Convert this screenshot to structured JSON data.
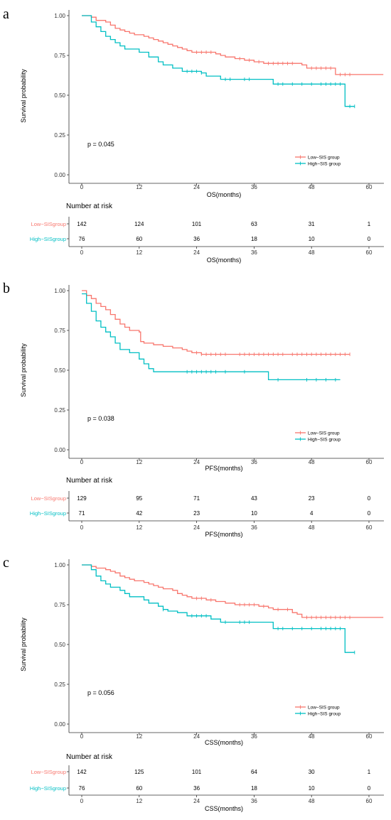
{
  "colors": {
    "low": "#F8766D",
    "high": "#00BFC4",
    "axis": "#333333"
  },
  "chart_data": [
    {
      "panel": "a",
      "type": "line",
      "ylabel": "Survival probability",
      "xlabel": "OS(months)",
      "p_value": "p = 0.045",
      "xlim": [
        0,
        60
      ],
      "ylim": [
        0,
        1
      ],
      "x_ticks": [
        "0",
        "12",
        "24",
        "36",
        "48",
        "60"
      ],
      "y_ticks": [
        "0.00",
        "0.25",
        "0.50",
        "0.75",
        "1.00"
      ],
      "series": [
        {
          "name": "Low−SIS group",
          "steps": [
            [
              0,
              1.0
            ],
            [
              2,
              0.99
            ],
            [
              3,
              0.97
            ],
            [
              5,
              0.96
            ],
            [
              6,
              0.94
            ],
            [
              7,
              0.92
            ],
            [
              8,
              0.91
            ],
            [
              9,
              0.9
            ],
            [
              10,
              0.89
            ],
            [
              11,
              0.88
            ],
            [
              13,
              0.87
            ],
            [
              14,
              0.86
            ],
            [
              15,
              0.85
            ],
            [
              16,
              0.84
            ],
            [
              17,
              0.83
            ],
            [
              18,
              0.82
            ],
            [
              19,
              0.81
            ],
            [
              20,
              0.8
            ],
            [
              21,
              0.79
            ],
            [
              22,
              0.78
            ],
            [
              23,
              0.77
            ],
            [
              28,
              0.76
            ],
            [
              29,
              0.75
            ],
            [
              30,
              0.74
            ],
            [
              32,
              0.73
            ],
            [
              34,
              0.72
            ],
            [
              36,
              0.71
            ],
            [
              38,
              0.7
            ],
            [
              46,
              0.69
            ],
            [
              47,
              0.67
            ],
            [
              53,
              0.63
            ],
            [
              63,
              0.63
            ]
          ],
          "censors": [
            24,
            25,
            26,
            27,
            33,
            35,
            37,
            39,
            40,
            41,
            42,
            43,
            44,
            48,
            49,
            50,
            51,
            52,
            54,
            55,
            56
          ]
        },
        {
          "name": "High−SIS group",
          "steps": [
            [
              0,
              1.0
            ],
            [
              2,
              0.96
            ],
            [
              3,
              0.93
            ],
            [
              4,
              0.9
            ],
            [
              5,
              0.87
            ],
            [
              6,
              0.85
            ],
            [
              7,
              0.83
            ],
            [
              8,
              0.81
            ],
            [
              9,
              0.79
            ],
            [
              12,
              0.77
            ],
            [
              14,
              0.74
            ],
            [
              16,
              0.71
            ],
            [
              17,
              0.69
            ],
            [
              19,
              0.67
            ],
            [
              21,
              0.65
            ],
            [
              25,
              0.64
            ],
            [
              26,
              0.62
            ],
            [
              29,
              0.6
            ],
            [
              40,
              0.57
            ],
            [
              55,
              0.57
            ],
            [
              55,
              0.43
            ],
            [
              57,
              0.43
            ]
          ],
          "censors": [
            22,
            23,
            24,
            25,
            30,
            31,
            34,
            35,
            41,
            42,
            44,
            46,
            48,
            50,
            51,
            52,
            53,
            54,
            56,
            57
          ]
        }
      ],
      "risk_table": {
        "title": "Number at risk",
        "times": [
          0,
          12,
          24,
          36,
          48,
          60
        ],
        "rows": [
          {
            "label": "Low−SISgroup",
            "values": [
              "142",
              "124",
              "101",
              "63",
              "31",
              "1"
            ]
          },
          {
            "label": "High−SISgroup",
            "values": [
              "76",
              "60",
              "36",
              "18",
              "10",
              "0"
            ]
          }
        ],
        "xlabel": "OS(months)"
      }
    },
    {
      "panel": "b",
      "type": "line",
      "ylabel": "Survival probability",
      "xlabel": "PFS(months)",
      "p_value": "p = 0.038",
      "xlim": [
        0,
        60
      ],
      "ylim": [
        0,
        1
      ],
      "x_ticks": [
        "0",
        "12",
        "24",
        "36",
        "48",
        "60"
      ],
      "y_ticks": [
        "0.00",
        "0.25",
        "0.50",
        "0.75",
        "1.00"
      ],
      "series": [
        {
          "name": "Low−SIS group",
          "steps": [
            [
              0,
              1.0
            ],
            [
              1,
              0.97
            ],
            [
              2,
              0.95
            ],
            [
              3,
              0.92
            ],
            [
              4,
              0.9
            ],
            [
              5,
              0.88
            ],
            [
              6,
              0.85
            ],
            [
              7,
              0.82
            ],
            [
              8,
              0.79
            ],
            [
              9,
              0.77
            ],
            [
              10,
              0.75
            ],
            [
              12,
              0.74
            ],
            [
              12.3,
              0.68
            ],
            [
              13,
              0.67
            ],
            [
              15,
              0.66
            ],
            [
              17,
              0.65
            ],
            [
              19,
              0.64
            ],
            [
              21,
              0.63
            ],
            [
              22,
              0.62
            ],
            [
              23,
              0.61
            ],
            [
              25,
              0.6
            ],
            [
              56,
              0.6
            ]
          ],
          "censors": [
            24,
            25,
            26,
            27,
            28,
            29,
            30,
            33,
            34,
            35,
            36,
            37,
            38,
            39,
            40,
            41,
            42,
            44,
            45,
            46,
            47,
            48,
            49,
            50,
            51,
            52,
            53,
            54,
            55,
            56
          ]
        },
        {
          "name": "High−SIS group",
          "steps": [
            [
              0,
              0.98
            ],
            [
              1,
              0.92
            ],
            [
              2,
              0.87
            ],
            [
              3,
              0.81
            ],
            [
              4,
              0.77
            ],
            [
              5,
              0.74
            ],
            [
              6,
              0.71
            ],
            [
              7,
              0.67
            ],
            [
              8,
              0.63
            ],
            [
              10,
              0.61
            ],
            [
              12,
              0.57
            ],
            [
              13,
              0.54
            ],
            [
              14,
              0.51
            ],
            [
              15,
              0.49
            ],
            [
              19,
              0.49
            ],
            [
              39,
              0.49
            ],
            [
              39,
              0.44
            ],
            [
              54,
              0.44
            ]
          ],
          "censors": [
            22,
            23,
            24,
            25,
            26,
            27,
            28,
            30,
            34,
            41,
            47,
            49,
            51,
            53
          ]
        }
      ],
      "risk_table": {
        "title": "Number at risk",
        "times": [
          0,
          12,
          24,
          36,
          48,
          60
        ],
        "rows": [
          {
            "label": "Low−SISgroup",
            "values": [
              "129",
              "95",
              "71",
              "43",
              "23",
              "0"
            ]
          },
          {
            "label": "High−SISgroup",
            "values": [
              "71",
              "42",
              "23",
              "10",
              "4",
              "0"
            ]
          }
        ],
        "xlabel": "PFS(months)"
      }
    },
    {
      "panel": "c",
      "type": "line",
      "ylabel": "Survival probability",
      "xlabel": "CSS(months)",
      "p_value": "p = 0.056",
      "xlim": [
        0,
        60
      ],
      "ylim": [
        0,
        1
      ],
      "x_ticks": [
        "0",
        "12",
        "24",
        "36",
        "48",
        "60"
      ],
      "y_ticks": [
        "0.00",
        "0.25",
        "0.50",
        "0.75",
        "1.00"
      ],
      "series": [
        {
          "name": "Low−SIS group",
          "steps": [
            [
              0,
              1.0
            ],
            [
              2,
              0.99
            ],
            [
              3,
              0.98
            ],
            [
              5,
              0.97
            ],
            [
              6,
              0.96
            ],
            [
              7,
              0.95
            ],
            [
              8,
              0.93
            ],
            [
              9,
              0.92
            ],
            [
              10,
              0.91
            ],
            [
              11,
              0.9
            ],
            [
              13,
              0.89
            ],
            [
              14,
              0.88
            ],
            [
              15,
              0.87
            ],
            [
              16,
              0.86
            ],
            [
              17,
              0.85
            ],
            [
              19,
              0.84
            ],
            [
              20,
              0.82
            ],
            [
              21,
              0.81
            ],
            [
              22,
              0.8
            ],
            [
              23,
              0.79
            ],
            [
              26,
              0.78
            ],
            [
              28,
              0.77
            ],
            [
              30,
              0.76
            ],
            [
              32,
              0.75
            ],
            [
              37,
              0.74
            ],
            [
              39,
              0.73
            ],
            [
              40,
              0.72
            ],
            [
              44,
              0.7
            ],
            [
              45,
              0.69
            ],
            [
              46,
              0.67
            ],
            [
              63,
              0.67
            ]
          ],
          "censors": [
            24,
            25,
            27,
            33,
            34,
            35,
            36,
            38,
            41,
            43,
            47,
            48,
            49,
            50,
            51,
            52,
            53,
            54,
            55,
            56
          ]
        },
        {
          "name": "High−SIS group",
          "steps": [
            [
              0,
              1.0
            ],
            [
              2,
              0.97
            ],
            [
              3,
              0.93
            ],
            [
              4,
              0.9
            ],
            [
              5,
              0.88
            ],
            [
              6,
              0.86
            ],
            [
              8,
              0.84
            ],
            [
              9,
              0.82
            ],
            [
              10,
              0.8
            ],
            [
              13,
              0.78
            ],
            [
              14,
              0.76
            ],
            [
              16,
              0.74
            ],
            [
              17,
              0.72
            ],
            [
              18,
              0.71
            ],
            [
              20,
              0.7
            ],
            [
              22,
              0.68
            ],
            [
              27,
              0.66
            ],
            [
              29,
              0.64
            ],
            [
              40,
              0.6
            ],
            [
              55,
              0.6
            ],
            [
              55,
              0.45
            ],
            [
              57,
              0.45
            ]
          ],
          "censors": [
            17,
            23,
            24,
            25,
            26,
            30,
            33,
            34,
            35,
            41,
            42,
            44,
            46,
            48,
            50,
            51,
            52,
            53,
            54,
            57
          ]
        }
      ],
      "risk_table": {
        "title": "Number at risk",
        "times": [
          0,
          12,
          24,
          36,
          48,
          60
        ],
        "rows": [
          {
            "label": "Low−SISgroup",
            "values": [
              "142",
              "125",
              "101",
              "64",
              "30",
              "1"
            ]
          },
          {
            "label": "High−SISgroup",
            "values": [
              "76",
              "60",
              "36",
              "18",
              "10",
              "0"
            ]
          }
        ],
        "xlabel": "CSS(months)"
      }
    }
  ]
}
